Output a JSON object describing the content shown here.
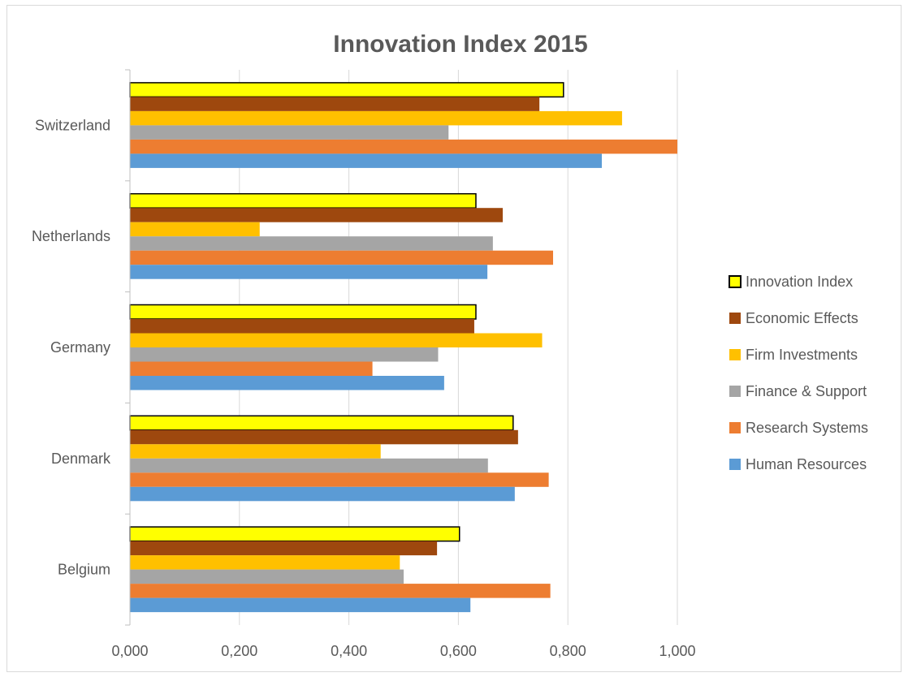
{
  "chart_data": {
    "type": "bar",
    "orientation": "horizontal",
    "title": "Innovation Index 2015",
    "xlabel": "",
    "ylabel": "",
    "xlim": [
      0,
      1
    ],
    "x_ticks": [
      "0,000",
      "0,200",
      "0,400",
      "0,600",
      "0,800",
      "1,000"
    ],
    "grid": "vertical",
    "legend_position": "right",
    "categories": [
      "Switzerland",
      "Netherlands",
      "Germany",
      "Denmark",
      "Belgium"
    ],
    "series": [
      {
        "name": "Innovation Index",
        "color": "#ffff00",
        "outline": "#000000",
        "values": [
          0.792,
          0.632,
          0.632,
          0.7,
          0.602
        ]
      },
      {
        "name": "Economic Effects",
        "color": "#9e480e",
        "values": [
          0.748,
          0.681,
          0.629,
          0.709,
          0.561
        ]
      },
      {
        "name": "Firm Investments",
        "color": "#ffc000",
        "values": [
          0.899,
          0.237,
          0.753,
          0.458,
          0.493
        ]
      },
      {
        "name": "Finance & Support",
        "color": "#a5a5a5",
        "values": [
          0.582,
          0.663,
          0.563,
          0.654,
          0.5
        ]
      },
      {
        "name": "Research Systems",
        "color": "#ed7d31",
        "values": [
          1.0,
          0.773,
          0.443,
          0.765,
          0.768
        ]
      },
      {
        "name": "Human Resources",
        "color": "#5b9bd5",
        "values": [
          0.862,
          0.653,
          0.574,
          0.703,
          0.622
        ]
      }
    ]
  }
}
